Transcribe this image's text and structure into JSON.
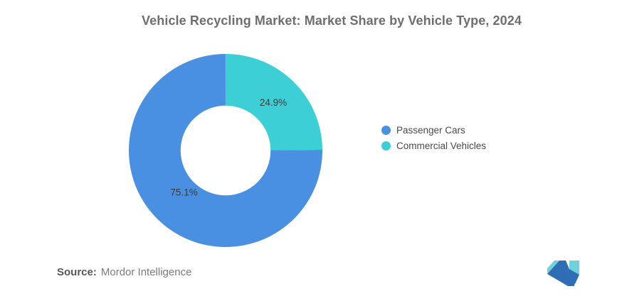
{
  "title": "Vehicle Recycling Market: Market Share by Vehicle Type, 2024",
  "chart_data": {
    "type": "pie",
    "subtype": "donut",
    "title": "Vehicle Recycling Market: Market Share by Vehicle Type, 2024",
    "categories": [
      "Passenger Cars",
      "Commercial Vehicles"
    ],
    "values": [
      75.1,
      24.9
    ],
    "labels": [
      "75.1%",
      "24.9%"
    ],
    "colors": [
      "#4A90E2",
      "#3CCFD5"
    ],
    "donut_hole_ratio": 0.465,
    "start_angle_deg": 89.6,
    "direction": "clockwise",
    "label_radius_frac": [
      0.61,
      0.7
    ],
    "legend_position": "right"
  },
  "legend": {
    "items": [
      {
        "label": "Passenger Cars",
        "color": "#4A90E2"
      },
      {
        "label": "Commercial Vehicles",
        "color": "#3CCFD5"
      }
    ]
  },
  "source": {
    "prefix": "Source:",
    "text": "Mordor Intelligence"
  },
  "logo": {
    "name": "mordor-intelligence-logo",
    "teal": "#6FD2DB",
    "blue": "#2F6EB5"
  }
}
